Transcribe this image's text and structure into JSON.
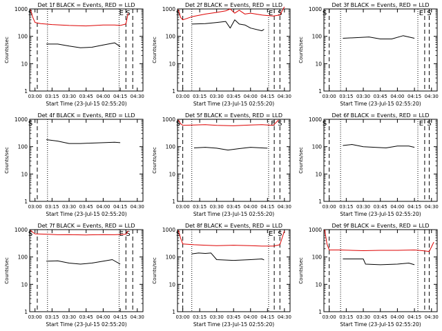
{
  "colors": {
    "events": "#000000",
    "lld": "#dd0000",
    "axis": "#000000"
  },
  "chart_data": [
    {
      "type": "line",
      "title": "Det 1f BLACK = Events, RED = LLD",
      "xlabel": "Start Time (23-Jul-15 02:55:20)",
      "ylabel": "Counts/sec",
      "yscale": "log",
      "ylim": [
        1,
        1000
      ],
      "xlim": [
        "02:55:20",
        "04:35:00"
      ],
      "x_ticks": [
        "03:00",
        "03:15",
        "03:30",
        "03:45",
        "04:00",
        "04:15",
        "04:30"
      ],
      "y_ticks": [
        "1",
        "10",
        "100",
        "1000"
      ],
      "markers": [
        {
          "label": "S",
          "x": "02:56"
        },
        {
          "label": "E",
          "x": "04:16"
        },
        {
          "label": "S",
          "x": "04:22"
        }
      ],
      "dashed_lines": [
        "03:02",
        "04:20",
        "04:26"
      ],
      "dotted_lines": [
        "03:11",
        "04:14"
      ],
      "series": [
        {
          "color": "red",
          "x": [
            "02:56",
            "02:58",
            "03:00",
            "03:05",
            "03:15",
            "03:30",
            "03:45",
            "04:00",
            "04:10",
            "04:15",
            "04:20",
            "04:22"
          ],
          "y": [
            950,
            500,
            320,
            290,
            270,
            250,
            240,
            260,
            260,
            250,
            280,
            700
          ]
        },
        {
          "color": "black",
          "x": [
            "03:10",
            "03:20",
            "03:30",
            "03:40",
            "03:50",
            "04:00",
            "04:10",
            "04:15"
          ],
          "y": [
            52,
            52,
            44,
            38,
            40,
            48,
            58,
            42
          ]
        }
      ]
    },
    {
      "type": "line",
      "title": "Det 2f BLACK = Events, RED = LLD",
      "xlabel": "Start Time (23-Jul-15 02:55:20)",
      "ylabel": "Counts/sec",
      "yscale": "log",
      "ylim": [
        1,
        1000
      ],
      "xlim": [
        "02:55:20",
        "04:35:00"
      ],
      "x_ticks": [
        "03:00",
        "03:15",
        "03:30",
        "03:45",
        "04:00",
        "04:15",
        "04:30"
      ],
      "y_ticks": [
        "1",
        "10",
        "100",
        "1000"
      ],
      "markers": [
        {
          "label": "S",
          "x": "02:56"
        },
        {
          "label": "E",
          "x": "04:18"
        },
        {
          "label": "S",
          "x": "04:26"
        }
      ],
      "dashed_lines": [
        "03:00",
        "04:21",
        "04:26"
      ],
      "dotted_lines": [
        "03:08",
        "04:16"
      ],
      "series": [
        {
          "color": "red",
          "x": [
            "02:56",
            "02:58",
            "03:00",
            "03:08",
            "03:20",
            "03:30",
            "03:38",
            "03:42",
            "03:46",
            "03:50",
            "03:55",
            "04:00",
            "04:10",
            "04:20",
            "04:26",
            "04:30"
          ],
          "y": [
            950,
            500,
            400,
            520,
            650,
            750,
            850,
            1000,
            700,
            900,
            650,
            700,
            600,
            550,
            600,
            1200
          ]
        },
        {
          "color": "black",
          "x": [
            "03:08",
            "03:20",
            "03:30",
            "03:38",
            "03:42",
            "03:46",
            "03:50",
            "03:55",
            "04:00",
            "04:10",
            "04:12"
          ],
          "y": [
            280,
            290,
            320,
            350,
            200,
            400,
            280,
            260,
            200,
            160,
            180
          ]
        }
      ]
    },
    {
      "type": "line",
      "title": "Det 3f BLACK = Events, RED = LLD",
      "xlabel": "Start Time (23-Jul-15 02:55:20)",
      "ylabel": "Counts/sec",
      "yscale": "log",
      "ylim": [
        1,
        1000
      ],
      "xlim": [
        "02:55:20",
        "04:35:00"
      ],
      "x_ticks": [
        "03:00",
        "03:15",
        "03:30",
        "03:45",
        "04:00",
        "04:15",
        "04:30"
      ],
      "y_ticks": [
        "1",
        "10",
        "100",
        "1000"
      ],
      "markers": [
        {
          "label": "S",
          "x": "02:56"
        },
        {
          "label": "E",
          "x": "04:21"
        },
        {
          "label": "S",
          "x": "04:28"
        }
      ],
      "dashed_lines": [
        "03:00",
        "04:24",
        "04:28"
      ],
      "dotted_lines": [
        "03:10",
        "04:18"
      ],
      "series": [
        {
          "color": "black",
          "x": [
            "03:12",
            "03:25",
            "03:35",
            "03:45",
            "03:55",
            "04:05",
            "04:15"
          ],
          "y": [
            85,
            90,
            95,
            80,
            80,
            105,
            85
          ]
        }
      ]
    },
    {
      "type": "line",
      "title": "Det 4f BLACK = Events, RED = LLD",
      "xlabel": "Start Time (23-Jul-15 02:55:20)",
      "ylabel": "Counts/sec",
      "yscale": "log",
      "ylim": [
        1,
        1000
      ],
      "xlim": [
        "02:55:20",
        "04:35:00"
      ],
      "x_ticks": [
        "03:00",
        "03:15",
        "03:30",
        "03:45",
        "04:00",
        "04:15",
        "04:30"
      ],
      "y_ticks": [
        "1",
        "10",
        "100",
        "1000"
      ],
      "markers": [
        {
          "label": "S",
          "x": "02:56"
        }
      ],
      "dashed_lines": [
        "03:02"
      ],
      "dotted_lines": [
        "03:11"
      ],
      "series": [
        {
          "color": "black",
          "x": [
            "03:10",
            "03:20",
            "03:30",
            "03:40",
            "03:50",
            "04:00",
            "04:10",
            "04:15"
          ],
          "y": [
            180,
            160,
            130,
            130,
            135,
            140,
            145,
            140
          ]
        }
      ]
    },
    {
      "type": "line",
      "title": "Det 5f BLACK = Events, RED = LLD",
      "xlabel": "Start Time (23-Jul-15 02:55:20)",
      "ylabel": "Counts/sec",
      "yscale": "log",
      "ylim": [
        1,
        1000
      ],
      "xlim": [
        "02:55:20",
        "04:35:00"
      ],
      "x_ticks": [
        "03:00",
        "03:15",
        "03:30",
        "03:45",
        "04:00",
        "04:15",
        "04:30"
      ],
      "y_ticks": [
        "1",
        "10",
        "100",
        "1000"
      ],
      "markers": [
        {
          "label": "S",
          "x": "02:56"
        },
        {
          "label": "E",
          "x": "04:20"
        },
        {
          "label": "S",
          "x": "04:26"
        }
      ],
      "dashed_lines": [
        "03:00",
        "04:21",
        "04:26"
      ],
      "dotted_lines": [
        "03:08",
        "04:16"
      ],
      "series": [
        {
          "color": "red",
          "x": [
            "02:56",
            "02:58",
            "03:00",
            "03:10",
            "03:20",
            "03:30",
            "03:45",
            "04:00",
            "04:10",
            "04:20",
            "04:25"
          ],
          "y": [
            950,
            700,
            600,
            620,
            640,
            600,
            580,
            620,
            640,
            600,
            950
          ]
        },
        {
          "color": "black",
          "x": [
            "03:10",
            "03:20",
            "03:30",
            "03:40",
            "03:50",
            "04:00",
            "04:10",
            "04:15"
          ],
          "y": [
            90,
            95,
            88,
            75,
            85,
            95,
            90,
            88
          ]
        }
      ]
    },
    {
      "type": "line",
      "title": "Det 6f BLACK = Events, RED = LLD",
      "xlabel": "Start Time (23-Jul-15 02:55:20)",
      "ylabel": "Counts/sec",
      "yscale": "log",
      "ylim": [
        1,
        1000
      ],
      "xlim": [
        "02:55:20",
        "04:35:00"
      ],
      "x_ticks": [
        "03:00",
        "03:15",
        "03:30",
        "03:45",
        "04:00",
        "04:15",
        "04:30"
      ],
      "y_ticks": [
        "1",
        "10",
        "100",
        "1000"
      ],
      "markers": [
        {
          "label": "S",
          "x": "02:56"
        },
        {
          "label": "E",
          "x": "04:21"
        },
        {
          "label": "S",
          "x": "04:28"
        }
      ],
      "dashed_lines": [
        "03:00",
        "04:24",
        "04:28"
      ],
      "dotted_lines": [
        "03:10",
        "04:18"
      ],
      "series": [
        {
          "color": "black",
          "x": [
            "03:12",
            "03:20",
            "03:30",
            "03:40",
            "03:50",
            "04:00",
            "04:10",
            "04:15"
          ],
          "y": [
            110,
            120,
            100,
            95,
            90,
            105,
            105,
            95
          ]
        }
      ]
    },
    {
      "type": "line",
      "title": "Det 7f BLACK = Events, RED = LLD",
      "xlabel": "Start Time (23-Jul-15 02:55:20)",
      "ylabel": "Counts/sec",
      "yscale": "log",
      "ylim": [
        1,
        1000
      ],
      "xlim": [
        "02:55:20",
        "04:35:00"
      ],
      "x_ticks": [
        "03:00",
        "03:15",
        "03:30",
        "03:45",
        "04:00",
        "04:15",
        "04:30"
      ],
      "y_ticks": [
        "1",
        "10",
        "100",
        "1000"
      ],
      "markers": [
        {
          "label": "S",
          "x": "02:56"
        },
        {
          "label": "E",
          "x": "04:16"
        },
        {
          "label": "S",
          "x": "04:22"
        }
      ],
      "dashed_lines": [
        "03:02",
        "04:20",
        "04:26"
      ],
      "dotted_lines": [
        "03:11",
        "04:14"
      ],
      "series": [
        {
          "color": "red",
          "x": [
            "02:56",
            "02:58",
            "03:00",
            "03:10",
            "03:20",
            "03:30",
            "03:45",
            "04:00",
            "04:10",
            "04:20",
            "04:22"
          ],
          "y": [
            950,
            800,
            700,
            680,
            650,
            660,
            640,
            660,
            650,
            680,
            900
          ]
        },
        {
          "color": "black",
          "x": [
            "03:10",
            "03:20",
            "03:30",
            "03:40",
            "03:50",
            "04:00",
            "04:08",
            "04:15"
          ],
          "y": [
            70,
            72,
            60,
            55,
            60,
            70,
            80,
            55
          ]
        }
      ]
    },
    {
      "type": "line",
      "title": "Det 8f BLACK = Events, RED = LLD",
      "xlabel": "Start Time (23-Jul-15 02:55:20)",
      "ylabel": "Counts/sec",
      "yscale": "log",
      "ylim": [
        1,
        1000
      ],
      "xlim": [
        "02:55:20",
        "04:35:00"
      ],
      "x_ticks": [
        "03:00",
        "03:15",
        "03:30",
        "03:45",
        "04:00",
        "04:15",
        "04:30"
      ],
      "y_ticks": [
        "1",
        "10",
        "100",
        "1000"
      ],
      "markers": [
        {
          "label": "S",
          "x": "02:56"
        },
        {
          "label": "E",
          "x": "04:18"
        },
        {
          "label": "S",
          "x": "04:26"
        }
      ],
      "dashed_lines": [
        "03:00",
        "04:21",
        "04:26"
      ],
      "dotted_lines": [
        "03:08",
        "04:16"
      ],
      "series": [
        {
          "color": "red",
          "x": [
            "02:56",
            "02:58",
            "03:00",
            "03:10",
            "03:20",
            "03:30",
            "03:45",
            "04:00",
            "04:10",
            "04:20",
            "04:26",
            "04:30"
          ],
          "y": [
            950,
            500,
            300,
            280,
            270,
            260,
            270,
            260,
            250,
            250,
            280,
            900
          ]
        },
        {
          "color": "black",
          "x": [
            "03:08",
            "03:14",
            "03:20",
            "03:25",
            "03:30",
            "03:45",
            "04:00",
            "04:10",
            "04:12"
          ],
          "y": [
            130,
            140,
            135,
            140,
            80,
            75,
            80,
            85,
            78
          ]
        }
      ]
    },
    {
      "type": "line",
      "title": "Det 9f BLACK = Events, RED = LLD",
      "xlabel": "Start Time (23-Jul-15 02:55:20)",
      "ylabel": "Counts/sec",
      "yscale": "log",
      "ylim": [
        1,
        1000
      ],
      "xlim": [
        "02:55:20",
        "04:35:00"
      ],
      "x_ticks": [
        "03:00",
        "03:15",
        "03:30",
        "03:45",
        "04:00",
        "04:15",
        "04:30"
      ],
      "y_ticks": [
        "1",
        "10",
        "100",
        "1000"
      ],
      "markers": [],
      "dashed_lines": [
        "03:00",
        "04:24",
        "04:28"
      ],
      "dotted_lines": [
        "03:10",
        "04:18"
      ],
      "series": [
        {
          "color": "red",
          "x": [
            "02:56",
            "02:58",
            "03:00",
            "03:10",
            "03:30",
            "03:45",
            "04:00",
            "04:15",
            "04:22",
            "04:28",
            "04:32"
          ],
          "y": [
            1000,
            300,
            180,
            180,
            170,
            175,
            175,
            180,
            170,
            160,
            350
          ]
        },
        {
          "color": "black",
          "x": [
            "03:12",
            "03:30",
            "03:32",
            "03:45",
            "04:00",
            "04:10",
            "04:15"
          ],
          "y": [
            85,
            85,
            55,
            52,
            55,
            60,
            52
          ]
        }
      ]
    }
  ]
}
